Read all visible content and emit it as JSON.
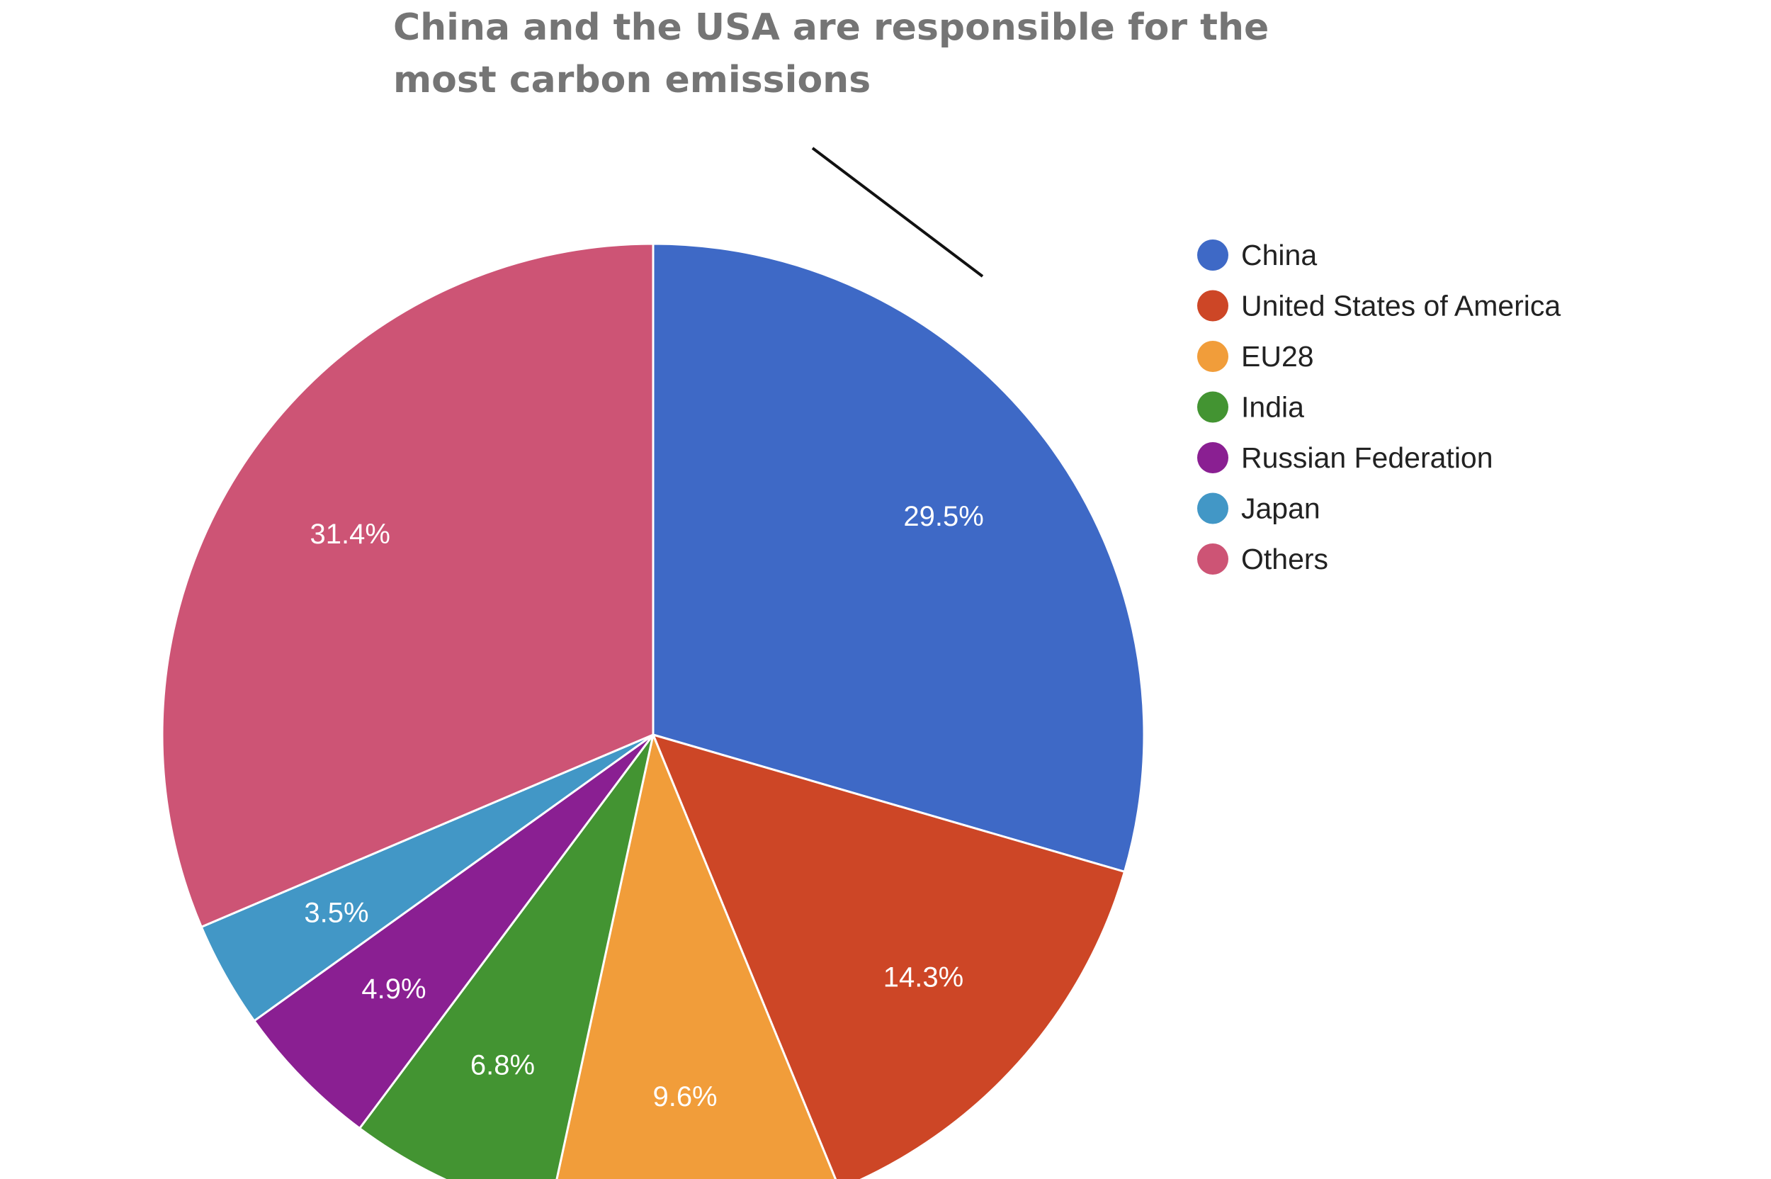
{
  "chart_data": {
    "type": "pie",
    "title": "China and the USA are responsible for the most carbon emissions",
    "slices": [
      {
        "label": "China",
        "value": 29.5,
        "display": "29.5%",
        "color": "#3e69c6"
      },
      {
        "label": "United States of America",
        "value": 14.3,
        "display": "14.3%",
        "color": "#cd4626"
      },
      {
        "label": "EU28",
        "value": 9.6,
        "display": "9.6%",
        "color": "#f19d3a"
      },
      {
        "label": "India",
        "value": 6.8,
        "display": "6.8%",
        "color": "#439432"
      },
      {
        "label": "Russian Federation",
        "value": 4.9,
        "display": "4.9%",
        "color": "#8a1f92"
      },
      {
        "label": "Japan",
        "value": 3.5,
        "display": "3.5%",
        "color": "#4297c6"
      },
      {
        "label": "Others",
        "value": 31.4,
        "display": "31.4%",
        "color": "#cd5475"
      }
    ],
    "legend_position": "right",
    "start_angle": "top, clockwise"
  }
}
